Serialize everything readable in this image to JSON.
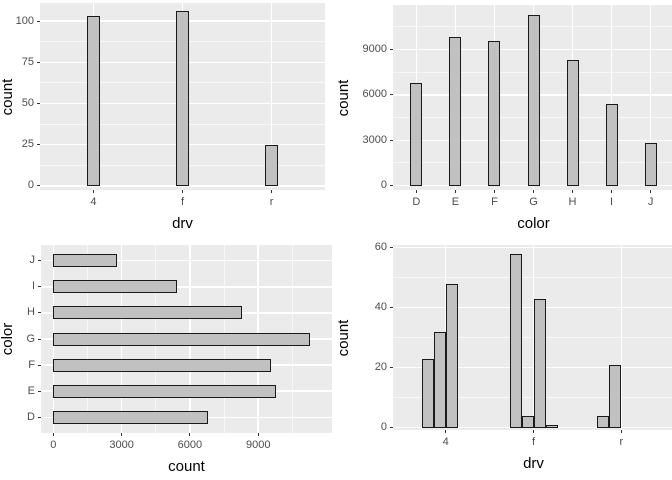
{
  "figure": {
    "layout": "2x2 grid of bar charts",
    "colors": {
      "page_bg": "#ffffff",
      "panel_bg": "#ebebeb",
      "gridline": "#ffffff",
      "bar_fill": "#c1c1c1",
      "bar_border": "#1a1a1a",
      "tick_mark": "#333333",
      "tick_label": "#4d4d4d",
      "axis_title": "#000000"
    }
  },
  "chart_data": [
    {
      "type": "bar",
      "orientation": "vertical",
      "title": "",
      "xlabel": "drv",
      "ylabel": "count",
      "categories": [
        "4",
        "f",
        "r"
      ],
      "values": [
        103,
        106,
        25
      ],
      "yticks": [
        0,
        25,
        50,
        75,
        100
      ],
      "yticks_minor": [
        12.5,
        37.5,
        62.5,
        87.5
      ],
      "ylim": [
        -2.5,
        111
      ],
      "grid": "major+minor white on grey panel",
      "legend": "none"
    },
    {
      "type": "bar",
      "orientation": "vertical",
      "title": "",
      "xlabel": "color",
      "ylabel": "count",
      "categories": [
        "D",
        "E",
        "F",
        "G",
        "H",
        "I",
        "J"
      ],
      "values": [
        6775,
        9797,
        9542,
        11292,
        8304,
        5422,
        2808
      ],
      "yticks": [
        0,
        3000,
        6000,
        9000
      ],
      "yticks_minor": [
        1500,
        4500,
        7500,
        10500
      ],
      "ylim": [
        -285,
        11945
      ],
      "grid": "major+minor white on grey panel",
      "legend": "none"
    },
    {
      "type": "bar",
      "orientation": "horizontal",
      "title": "",
      "xlabel": "count",
      "ylabel": "color",
      "categories_top_to_bottom": [
        "J",
        "I",
        "H",
        "G",
        "F",
        "E",
        "D"
      ],
      "values_top_to_bottom": [
        2808,
        5422,
        8304,
        11292,
        9542,
        9797,
        6775
      ],
      "xticks": [
        0,
        3000,
        6000,
        9000
      ],
      "xticks_minor": [
        1500,
        4500,
        7500,
        10500
      ],
      "xlim": [
        -540,
        12240
      ],
      "grid": "major+minor white on grey panel",
      "legend": "none"
    },
    {
      "type": "bar",
      "orientation": "vertical",
      "grouping": "dodged",
      "title": "",
      "xlabel": "drv",
      "ylabel": "count",
      "categories": [
        "4",
        "f",
        "r"
      ],
      "groups": [
        {
          "category": "4",
          "values": [
            23,
            32,
            48
          ]
        },
        {
          "category": "f",
          "values": [
            58,
            4,
            43,
            1
          ]
        },
        {
          "category": "r",
          "values": [
            4,
            21
          ]
        }
      ],
      "yticks": [
        0,
        20,
        40,
        60
      ],
      "yticks_minor": [
        10,
        30,
        50
      ],
      "ylim": [
        -0.8,
        60.9
      ],
      "grid": "major+minor white on grey panel",
      "legend": "none"
    }
  ]
}
